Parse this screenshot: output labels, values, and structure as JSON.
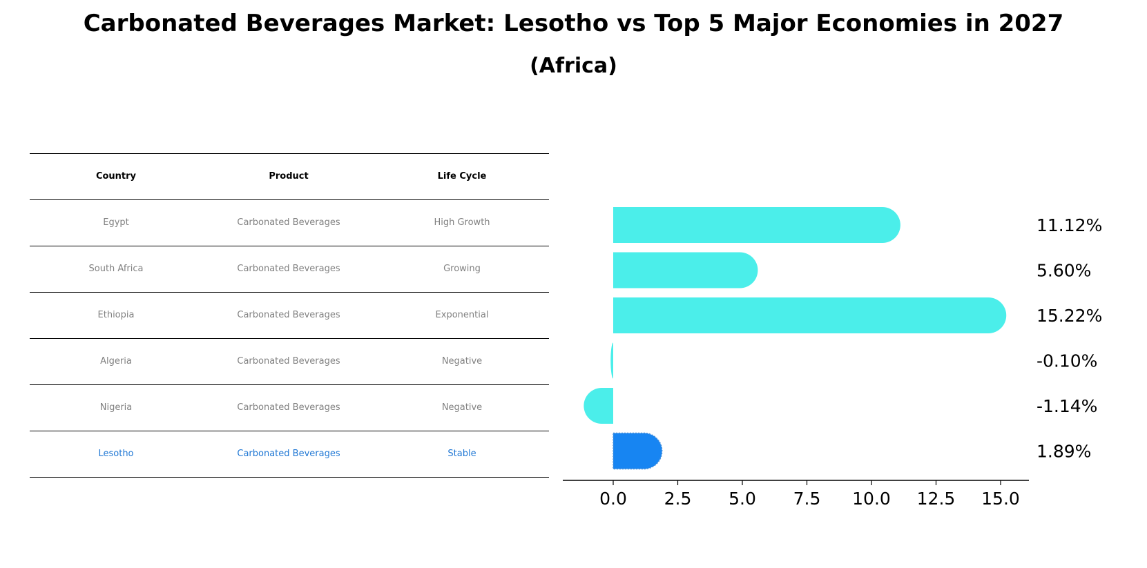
{
  "title": "Carbonated Beverages Market: Lesotho vs Top 5 Major Economies in 2027",
  "subtitle": "(Africa)",
  "table": {
    "headers": [
      "Country",
      "Product",
      "Life Cycle"
    ],
    "rows": [
      {
        "country": "Egypt",
        "product": "Carbonated Beverages",
        "life_cycle": "High Growth"
      },
      {
        "country": "South Africa",
        "product": "Carbonated Beverages",
        "life_cycle": "Growing"
      },
      {
        "country": "Ethiopia",
        "product": "Carbonated Beverages",
        "life_cycle": "Exponential"
      },
      {
        "country": "Algeria",
        "product": "Carbonated Beverages",
        "life_cycle": "Negative"
      },
      {
        "country": "Nigeria",
        "product": "Carbonated Beverages",
        "life_cycle": "Negative"
      },
      {
        "country": "Lesotho",
        "product": "Carbonated Beverages",
        "life_cycle": "Stable"
      }
    ]
  },
  "chart_data": {
    "type": "bar",
    "orientation": "horizontal",
    "categories": [
      "Egypt",
      "South Africa",
      "Ethiopia",
      "Algeria",
      "Nigeria",
      "Lesotho"
    ],
    "values": [
      11.12,
      5.6,
      15.22,
      -0.1,
      -1.14,
      1.89
    ],
    "value_labels": [
      "11.12%",
      "5.60%",
      "15.22%",
      "-0.10%",
      "-1.14%",
      "1.89%"
    ],
    "highlight": "Lesotho",
    "xlim": [
      -3.9,
      16.0
    ],
    "xticks": [
      0.0,
      2.5,
      5.0,
      7.5,
      10.0,
      12.5,
      15.0
    ],
    "xtick_labels": [
      "0.0",
      "2.5",
      "5.0",
      "7.5",
      "10.0",
      "12.5",
      "15.0"
    ],
    "grid": false,
    "colors": {
      "bar": "#4beeea",
      "highlight": "#1785f2",
      "table_text": "#808080",
      "highlight_text": "#1f77d4"
    }
  }
}
